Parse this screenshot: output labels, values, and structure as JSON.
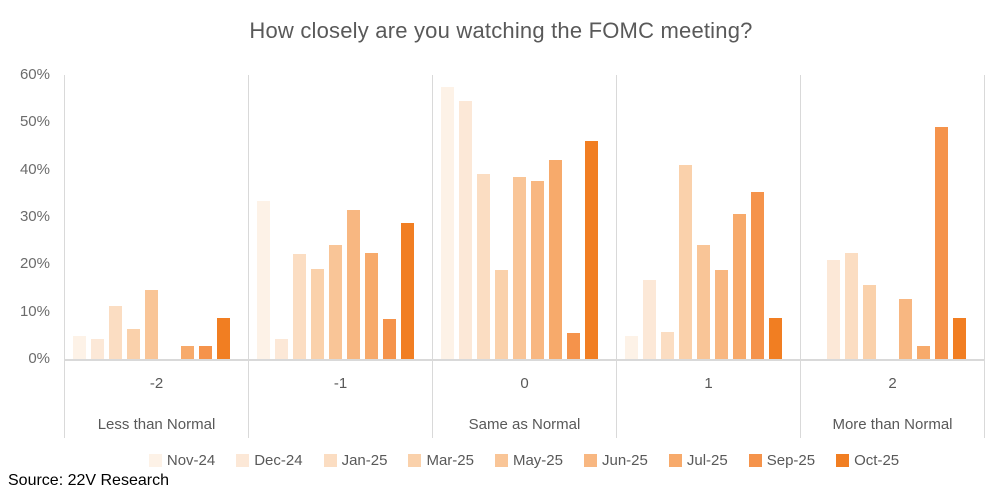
{
  "title": "How closely are you watching the FOMC meeting?",
  "source": "Source: 22V Research",
  "colors": {
    "axis_line": "#d9d9d9",
    "title_text": "#595959",
    "label_text": "#595959",
    "source_text": "#000000"
  },
  "chart_data": {
    "type": "bar",
    "title": "How closely are you watching the FOMC meeting?",
    "categories": [
      "-2",
      "-1",
      "0",
      "1",
      "2"
    ],
    "category_sublabels": [
      "Less than Normal",
      "",
      "Same as Normal",
      "",
      "More than Normal"
    ],
    "xlabel": "",
    "ylabel": "",
    "ylim": [
      0,
      60
    ],
    "y_tick_labels": [
      "60%",
      "50%",
      "40%",
      "30%",
      "20%",
      "10%",
      "0%"
    ],
    "y_tick_values": [
      60,
      50,
      40,
      30,
      20,
      10,
      0
    ],
    "grid": "vertical category dividers only, no horizontal gridlines",
    "legend_position": "bottom",
    "value_unit": "percent of respondents",
    "series": [
      {
        "name": "Nov-24",
        "color": "#FDF2E7",
        "values": [
          4.8,
          33.3,
          57.4,
          4.8,
          0
        ]
      },
      {
        "name": "Dec-24",
        "color": "#FCE8D7",
        "values": [
          4.3,
          4.3,
          54.5,
          16.7,
          21.0
        ]
      },
      {
        "name": "Jan-25",
        "color": "#FBDDC2",
        "values": [
          11.1,
          22.2,
          39.1,
          5.7,
          22.3
        ]
      },
      {
        "name": "Mar-25",
        "color": "#FAD1AB",
        "values": [
          6.4,
          19.0,
          18.9,
          40.9,
          15.7
        ]
      },
      {
        "name": "May-25",
        "color": "#F9C597",
        "values": [
          14.5,
          24.1,
          38.4,
          24.1,
          0
        ]
      },
      {
        "name": "Jun-25",
        "color": "#F8B781",
        "values": [
          0,
          31.4,
          37.7,
          18.9,
          12.6
        ]
      },
      {
        "name": "Jul-25",
        "color": "#F7AA6B",
        "values": [
          2.8,
          22.3,
          42.0,
          30.7,
          2.8
        ]
      },
      {
        "name": "Sep-25",
        "color": "#F5934B",
        "values": [
          2.8,
          8.4,
          5.5,
          35.3,
          49.0
        ]
      },
      {
        "name": "Oct-25",
        "color": "#F17E22",
        "values": [
          8.7,
          28.7,
          46.0,
          8.7,
          8.7
        ]
      }
    ]
  }
}
